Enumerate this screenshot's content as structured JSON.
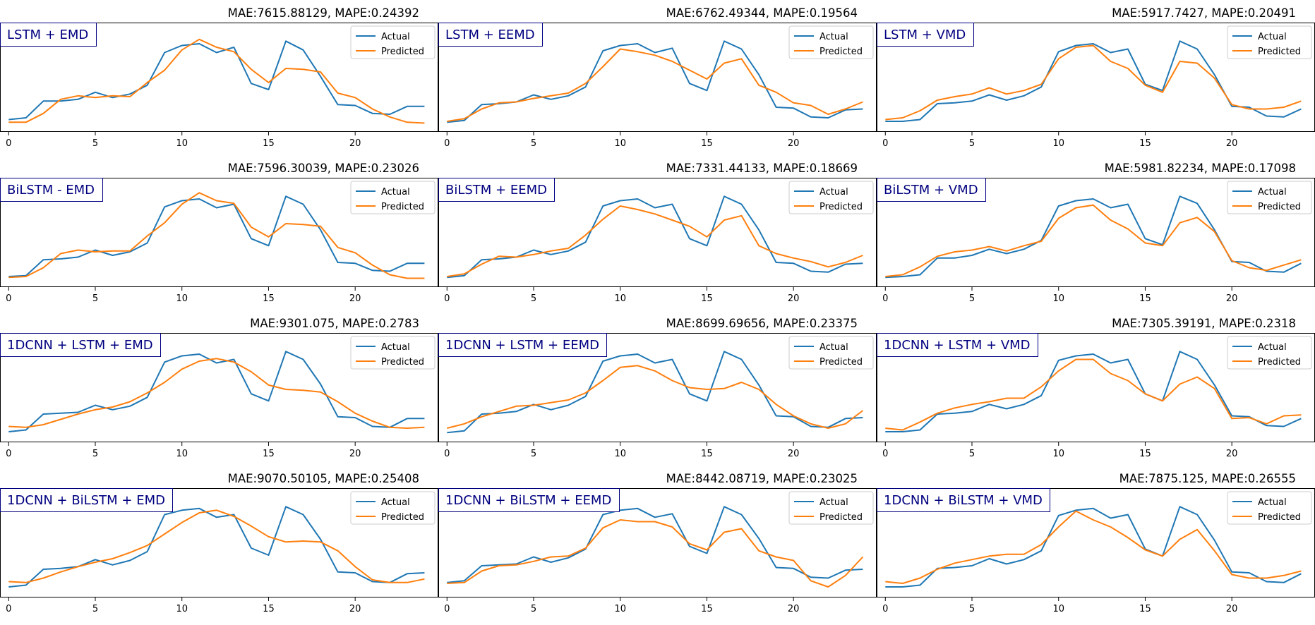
{
  "legend": {
    "actual": "Actual",
    "predicted": "Predicted"
  },
  "colors": {
    "actual": "#1f77b4",
    "predicted": "#ff7f0e",
    "label_text": "#000080",
    "label_border": "#000080"
  },
  "axis": {
    "x_ticks": [
      0,
      5,
      10,
      15,
      20,
      25
    ],
    "x_lim": [
      -0.5,
      24.8
    ]
  },
  "chart_data": [
    {
      "type": "line",
      "label": "LSTM + EMD",
      "title": "MAE:7615.88129, MAPE:0.24392",
      "x": [
        0,
        1,
        2,
        3,
        4,
        5,
        6,
        7,
        8,
        9,
        10,
        11,
        12,
        13,
        14,
        15,
        16,
        17,
        18,
        19,
        20,
        21,
        22,
        23,
        24
      ],
      "series": [
        {
          "name": "Actual",
          "values": [
            0.06,
            0.08,
            0.27,
            0.27,
            0.29,
            0.37,
            0.31,
            0.35,
            0.45,
            0.82,
            0.9,
            0.92,
            0.82,
            0.88,
            0.47,
            0.4,
            0.95,
            0.85,
            0.55,
            0.23,
            0.22,
            0.13,
            0.12,
            0.21,
            0.21
          ]
        },
        {
          "name": "Predicted",
          "values": [
            0.03,
            0.03,
            0.13,
            0.29,
            0.33,
            0.31,
            0.33,
            0.32,
            0.48,
            0.62,
            0.85,
            0.97,
            0.88,
            0.83,
            0.63,
            0.48,
            0.64,
            0.63,
            0.6,
            0.36,
            0.31,
            0.18,
            0.09,
            0.03,
            0.02
          ]
        }
      ]
    },
    {
      "type": "line",
      "label": "LSTM + EEMD",
      "title": "MAE:6762.49344, MAPE:0.19564",
      "x": [
        0,
        1,
        2,
        3,
        4,
        5,
        6,
        7,
        8,
        9,
        10,
        11,
        12,
        13,
        14,
        15,
        16,
        17,
        18,
        19,
        20,
        21,
        22,
        23,
        24
      ],
      "series": [
        {
          "name": "Actual",
          "values": [
            0.03,
            0.05,
            0.23,
            0.24,
            0.26,
            0.34,
            0.29,
            0.33,
            0.43,
            0.84,
            0.9,
            0.92,
            0.82,
            0.87,
            0.47,
            0.39,
            0.95,
            0.86,
            0.57,
            0.2,
            0.19,
            0.09,
            0.08,
            0.17,
            0.18
          ]
        },
        {
          "name": "Predicted",
          "values": [
            0.04,
            0.07,
            0.18,
            0.25,
            0.26,
            0.3,
            0.33,
            0.36,
            0.47,
            0.66,
            0.86,
            0.83,
            0.79,
            0.72,
            0.62,
            0.52,
            0.7,
            0.75,
            0.45,
            0.37,
            0.25,
            0.22,
            0.12,
            0.18,
            0.26
          ]
        }
      ]
    },
    {
      "type": "line",
      "label": "LSTM + VMD",
      "title": "MAE:5917.7427, MAPE:0.20491",
      "x": [
        0,
        1,
        2,
        3,
        4,
        5,
        6,
        7,
        8,
        9,
        10,
        11,
        12,
        13,
        14,
        15,
        16,
        17,
        18,
        19,
        20,
        21,
        22,
        23,
        24
      ],
      "series": [
        {
          "name": "Actual",
          "values": [
            0.04,
            0.04,
            0.06,
            0.24,
            0.25,
            0.27,
            0.34,
            0.28,
            0.33,
            0.43,
            0.83,
            0.9,
            0.92,
            0.82,
            0.86,
            0.46,
            0.39,
            0.95,
            0.86,
            0.57,
            0.21,
            0.2,
            0.1,
            0.09,
            0.18
          ]
        },
        {
          "name": "Predicted",
          "values": [
            0.06,
            0.08,
            0.16,
            0.28,
            0.32,
            0.35,
            0.42,
            0.35,
            0.39,
            0.46,
            0.75,
            0.88,
            0.9,
            0.72,
            0.64,
            0.45,
            0.37,
            0.72,
            0.7,
            0.53,
            0.23,
            0.18,
            0.18,
            0.2,
            0.27
          ]
        }
      ]
    },
    {
      "type": "line",
      "label": "BiLSTM - EMD",
      "title": "MAE:7596.30039, MAPE:0.23026",
      "x": [
        0,
        1,
        2,
        3,
        4,
        5,
        6,
        7,
        8,
        9,
        10,
        11,
        12,
        13,
        14,
        15,
        16,
        17,
        18,
        19,
        20,
        21,
        22,
        23,
        24
      ],
      "series": [
        {
          "name": "Actual",
          "values": [
            0.04,
            0.05,
            0.23,
            0.24,
            0.26,
            0.34,
            0.28,
            0.32,
            0.42,
            0.83,
            0.9,
            0.92,
            0.82,
            0.86,
            0.47,
            0.39,
            0.95,
            0.86,
            0.57,
            0.2,
            0.19,
            0.11,
            0.1,
            0.19,
            0.19
          ]
        },
        {
          "name": "Predicted",
          "values": [
            0.03,
            0.04,
            0.14,
            0.3,
            0.34,
            0.32,
            0.33,
            0.33,
            0.5,
            0.65,
            0.86,
            0.99,
            0.9,
            0.87,
            0.6,
            0.49,
            0.64,
            0.63,
            0.61,
            0.37,
            0.31,
            0.17,
            0.06,
            0.02,
            0.02
          ]
        }
      ]
    },
    {
      "type": "line",
      "label": "BiLSTM + EEMD",
      "title": "MAE:7331.44133, MAPE:0.18669",
      "x": [
        0,
        1,
        2,
        3,
        4,
        5,
        6,
        7,
        8,
        9,
        10,
        11,
        12,
        13,
        14,
        15,
        16,
        17,
        18,
        19,
        20,
        21,
        22,
        23,
        24
      ],
      "series": [
        {
          "name": "Actual",
          "values": [
            0.03,
            0.05,
            0.23,
            0.24,
            0.26,
            0.34,
            0.29,
            0.33,
            0.43,
            0.84,
            0.9,
            0.92,
            0.82,
            0.86,
            0.47,
            0.39,
            0.95,
            0.86,
            0.57,
            0.2,
            0.19,
            0.1,
            0.09,
            0.18,
            0.19
          ]
        },
        {
          "name": "Predicted",
          "values": [
            0.04,
            0.07,
            0.18,
            0.27,
            0.26,
            0.29,
            0.33,
            0.36,
            0.51,
            0.69,
            0.84,
            0.8,
            0.75,
            0.68,
            0.61,
            0.49,
            0.68,
            0.73,
            0.39,
            0.3,
            0.25,
            0.21,
            0.15,
            0.2,
            0.28
          ]
        }
      ]
    },
    {
      "type": "line",
      "label": "BiLSTM + VMD",
      "title": "MAE:5981.82234, MAPE:0.17098",
      "x": [
        0,
        1,
        2,
        3,
        4,
        5,
        6,
        7,
        8,
        9,
        10,
        11,
        12,
        13,
        14,
        15,
        16,
        17,
        18,
        19,
        20,
        21,
        22,
        23,
        24
      ],
      "series": [
        {
          "name": "Actual",
          "values": [
            0.03,
            0.04,
            0.06,
            0.25,
            0.25,
            0.28,
            0.35,
            0.3,
            0.35,
            0.45,
            0.84,
            0.9,
            0.92,
            0.82,
            0.86,
            0.47,
            0.4,
            0.95,
            0.87,
            0.57,
            0.21,
            0.2,
            0.1,
            0.09,
            0.19
          ]
        },
        {
          "name": "Predicted",
          "values": [
            0.04,
            0.06,
            0.15,
            0.27,
            0.32,
            0.34,
            0.38,
            0.33,
            0.39,
            0.44,
            0.7,
            0.82,
            0.85,
            0.68,
            0.58,
            0.42,
            0.39,
            0.65,
            0.71,
            0.55,
            0.22,
            0.14,
            0.11,
            0.17,
            0.23
          ]
        }
      ]
    },
    {
      "type": "line",
      "label": "1DCNN + LSTM + EMD",
      "title": "MAE:9301.075, MAPE:0.2783",
      "x": [
        0,
        1,
        2,
        3,
        4,
        5,
        6,
        7,
        8,
        9,
        10,
        11,
        12,
        13,
        14,
        15,
        16,
        17,
        18,
        19,
        20,
        21,
        22,
        23,
        24
      ],
      "series": [
        {
          "name": "Actual",
          "values": [
            0.04,
            0.06,
            0.24,
            0.25,
            0.26,
            0.34,
            0.29,
            0.33,
            0.43,
            0.83,
            0.9,
            0.92,
            0.82,
            0.86,
            0.47,
            0.39,
            0.95,
            0.86,
            0.58,
            0.21,
            0.2,
            0.1,
            0.09,
            0.19,
            0.19
          ]
        },
        {
          "name": "Predicted",
          "values": [
            0.1,
            0.09,
            0.12,
            0.18,
            0.24,
            0.29,
            0.32,
            0.38,
            0.48,
            0.6,
            0.75,
            0.84,
            0.87,
            0.83,
            0.72,
            0.57,
            0.52,
            0.51,
            0.49,
            0.38,
            0.25,
            0.16,
            0.09,
            0.08,
            0.09
          ]
        }
      ]
    },
    {
      "type": "line",
      "label": "1DCNN + LSTM + EEMD",
      "title": "MAE:8699.69656, MAPE:0.23375",
      "x": [
        0,
        1,
        2,
        3,
        4,
        5,
        6,
        7,
        8,
        9,
        10,
        11,
        12,
        13,
        14,
        15,
        16,
        17,
        18,
        19,
        20,
        21,
        22,
        23,
        24
      ],
      "series": [
        {
          "name": "Actual",
          "values": [
            0.03,
            0.05,
            0.24,
            0.25,
            0.27,
            0.35,
            0.29,
            0.34,
            0.44,
            0.84,
            0.9,
            0.92,
            0.82,
            0.86,
            0.47,
            0.39,
            0.95,
            0.86,
            0.57,
            0.22,
            0.21,
            0.1,
            0.09,
            0.19,
            0.2
          ]
        },
        {
          "name": "Predicted",
          "values": [
            0.08,
            0.13,
            0.21,
            0.27,
            0.33,
            0.34,
            0.37,
            0.4,
            0.48,
            0.62,
            0.77,
            0.79,
            0.73,
            0.62,
            0.54,
            0.52,
            0.53,
            0.6,
            0.52,
            0.35,
            0.22,
            0.13,
            0.08,
            0.13,
            0.28
          ]
        }
      ]
    },
    {
      "type": "line",
      "label": "1DCNN + LSTM + VMD",
      "title": "MAE:7305.39191, MAPE:0.2318",
      "x": [
        0,
        1,
        2,
        3,
        4,
        5,
        6,
        7,
        8,
        9,
        10,
        11,
        12,
        13,
        14,
        15,
        16,
        17,
        18,
        19,
        20,
        21,
        22,
        23,
        24
      ],
      "series": [
        {
          "name": "Actual",
          "values": [
            0.04,
            0.04,
            0.06,
            0.24,
            0.25,
            0.27,
            0.35,
            0.3,
            0.35,
            0.45,
            0.85,
            0.9,
            0.92,
            0.82,
            0.86,
            0.47,
            0.39,
            0.95,
            0.86,
            0.57,
            0.22,
            0.21,
            0.11,
            0.1,
            0.19
          ]
        },
        {
          "name": "Predicted",
          "values": [
            0.08,
            0.06,
            0.15,
            0.25,
            0.31,
            0.35,
            0.38,
            0.42,
            0.42,
            0.55,
            0.73,
            0.86,
            0.86,
            0.7,
            0.62,
            0.47,
            0.39,
            0.58,
            0.66,
            0.53,
            0.19,
            0.2,
            0.13,
            0.22,
            0.23
          ]
        }
      ]
    },
    {
      "type": "line",
      "label": "1DCNN + BiLSTM + EMD",
      "title": "MAE:9070.50105, MAPE:0.25408",
      "x": [
        0,
        1,
        2,
        3,
        4,
        5,
        6,
        7,
        8,
        9,
        10,
        11,
        12,
        13,
        14,
        15,
        16,
        17,
        18,
        19,
        20,
        21,
        22,
        23,
        24
      ],
      "series": [
        {
          "name": "Actual",
          "values": [
            0.04,
            0.06,
            0.24,
            0.25,
            0.27,
            0.35,
            0.29,
            0.34,
            0.44,
            0.86,
            0.91,
            0.93,
            0.83,
            0.86,
            0.48,
            0.4,
            0.95,
            0.86,
            0.58,
            0.21,
            0.2,
            0.1,
            0.09,
            0.19,
            0.2
          ]
        },
        {
          "name": "Predicted",
          "values": [
            0.1,
            0.09,
            0.14,
            0.21,
            0.27,
            0.32,
            0.36,
            0.43,
            0.51,
            0.64,
            0.77,
            0.88,
            0.91,
            0.84,
            0.73,
            0.61,
            0.55,
            0.56,
            0.55,
            0.45,
            0.27,
            0.12,
            0.09,
            0.09,
            0.13
          ]
        }
      ]
    },
    {
      "type": "line",
      "label": "1DCNN + BiLSTM + EEMD",
      "title": "MAE:8442.08719, MAPE:0.23025",
      "x": [
        0,
        1,
        2,
        3,
        4,
        5,
        6,
        7,
        8,
        9,
        10,
        11,
        12,
        13,
        14,
        15,
        16,
        17,
        18,
        19,
        20,
        21,
        22,
        23,
        24
      ],
      "series": [
        {
          "name": "Actual",
          "values": [
            0.09,
            0.11,
            0.28,
            0.29,
            0.3,
            0.38,
            0.32,
            0.37,
            0.47,
            0.86,
            0.91,
            0.93,
            0.83,
            0.87,
            0.5,
            0.42,
            0.95,
            0.86,
            0.59,
            0.26,
            0.25,
            0.15,
            0.14,
            0.23,
            0.24
          ]
        },
        {
          "name": "Predicted",
          "values": [
            0.08,
            0.09,
            0.22,
            0.28,
            0.29,
            0.33,
            0.38,
            0.39,
            0.48,
            0.71,
            0.8,
            0.78,
            0.78,
            0.72,
            0.53,
            0.46,
            0.66,
            0.7,
            0.45,
            0.38,
            0.34,
            0.11,
            0.04,
            0.17,
            0.38
          ]
        }
      ]
    },
    {
      "type": "line",
      "label": "1DCNN + BiLSTM + VMD",
      "title": "MAE:7875.125, MAPE:0.26555",
      "x": [
        0,
        1,
        2,
        3,
        4,
        5,
        6,
        7,
        8,
        9,
        10,
        11,
        12,
        13,
        14,
        15,
        16,
        17,
        18,
        19,
        20,
        21,
        22,
        23,
        24
      ],
      "series": [
        {
          "name": "Actual",
          "values": [
            0.04,
            0.04,
            0.06,
            0.25,
            0.26,
            0.28,
            0.36,
            0.3,
            0.35,
            0.45,
            0.85,
            0.91,
            0.93,
            0.82,
            0.86,
            0.47,
            0.39,
            0.95,
            0.86,
            0.57,
            0.21,
            0.2,
            0.1,
            0.09,
            0.19
          ]
        },
        {
          "name": "Predicted",
          "values": [
            0.1,
            0.08,
            0.14,
            0.24,
            0.31,
            0.35,
            0.39,
            0.41,
            0.41,
            0.52,
            0.72,
            0.9,
            0.8,
            0.72,
            0.6,
            0.46,
            0.39,
            0.58,
            0.69,
            0.45,
            0.18,
            0.14,
            0.14,
            0.17,
            0.22
          ]
        }
      ]
    }
  ]
}
